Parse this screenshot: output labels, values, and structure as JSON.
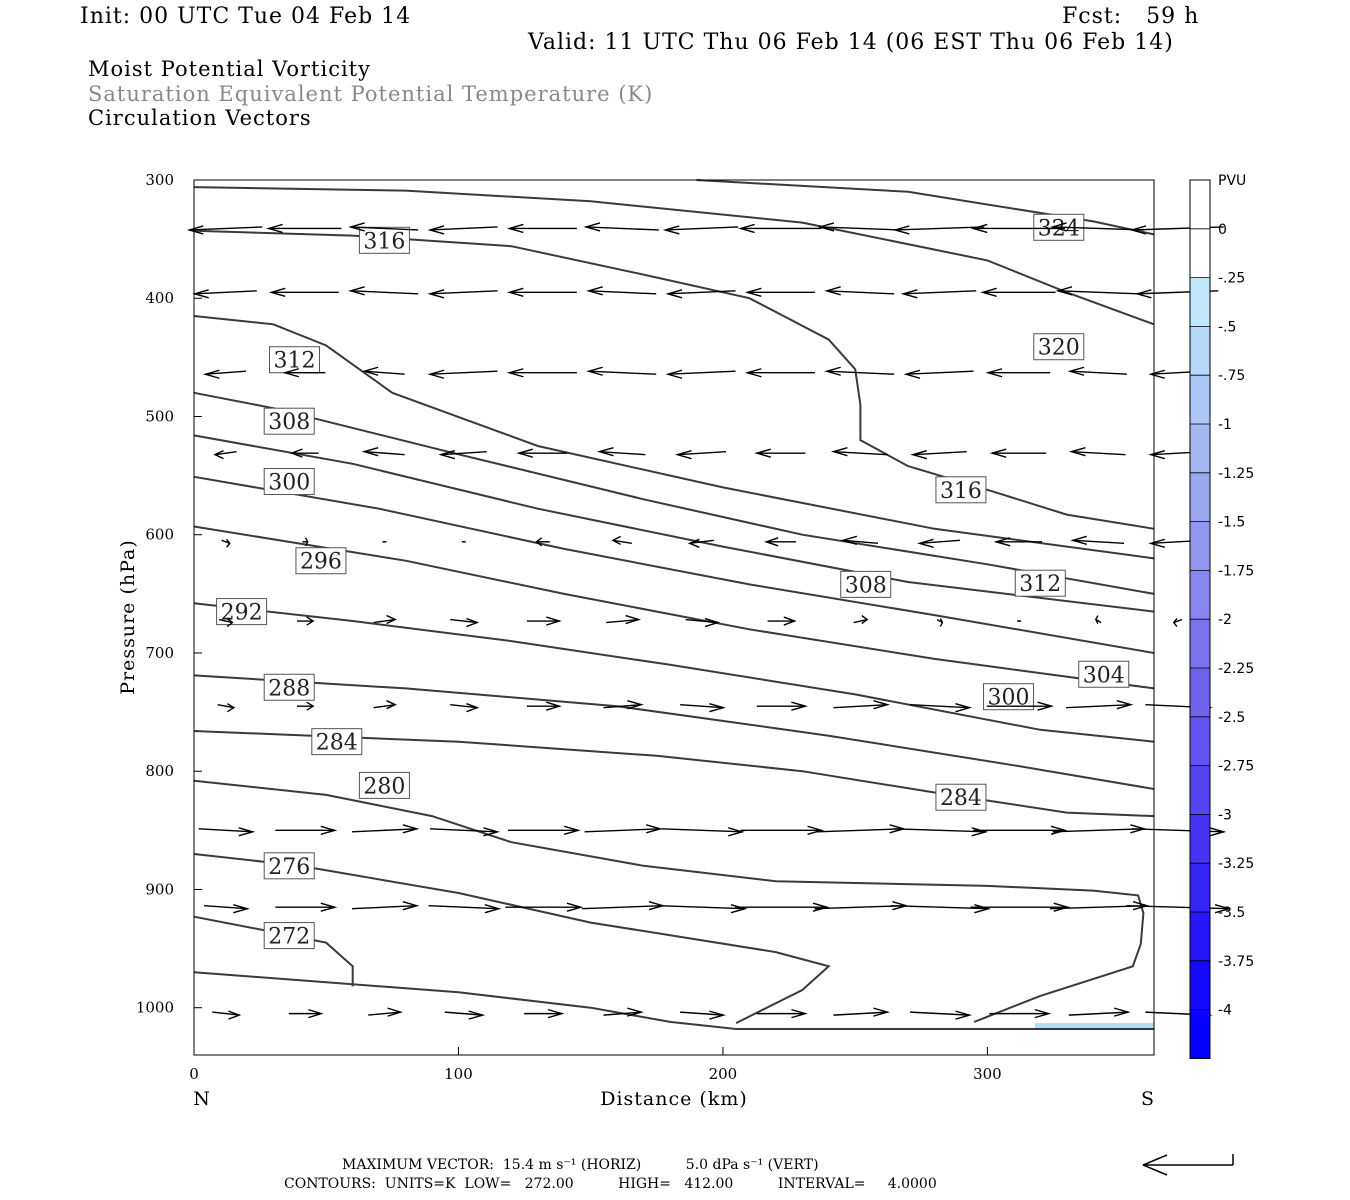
{
  "header": {
    "init": "Init: 00 UTC Tue 04 Feb 14",
    "fcst": "Fcst:   59 h",
    "valid": "Valid: 11 UTC Thu 06 Feb 14 (06 EST Thu 06 Feb 14)",
    "field1": "Moist Potential Vorticity",
    "field2": "Saturation Equivalent Potential Temperature (K)",
    "field3": "Circulation Vectors"
  },
  "footer": {
    "max_vector": "MAXIMUM VECTOR:  15.4 m s⁻¹ (HORIZ)          5.0 dPa s⁻¹ (VERT)",
    "contours": "CONTOURS:  UNITS=K  LOW=   272.00          HIGH=   412.00          INTERVAL=     4.0000"
  },
  "colors": {
    "contour": "#3a3a3a",
    "vector": "#000000",
    "pv_fill": "#b3dcf5"
  },
  "chart_data": {
    "type": "cross-section",
    "xlabel": "Distance (km)",
    "ylabel": "Pressure (hPa)",
    "xlim": [
      0,
      363
    ],
    "ylim": [
      1040,
      300
    ],
    "x_ticks": [
      0,
      100,
      200,
      300
    ],
    "y_ticks": [
      300,
      400,
      500,
      600,
      700,
      800,
      900,
      1000
    ],
    "x_end_labels": {
      "left": "N",
      "right": "S"
    },
    "grid": false,
    "colorbar": {
      "title": "PVU",
      "labels": [
        "0",
        "-.25",
        "-.5",
        "-.75",
        "-1",
        "-1.25",
        "-1.5",
        "-1.75",
        "-2",
        "-2.25",
        "-2.5",
        "-2.75",
        "-3",
        "-3.25",
        "-3.5",
        "-3.75",
        "-4"
      ],
      "colors": [
        "#ffffff",
        "#ffffff",
        "#bfe6fb",
        "#b4d8f7",
        "#abc8f5",
        "#a4b8f2",
        "#9aa8f0",
        "#9296ef",
        "#8785ee",
        "#7c74ee",
        "#7064ef",
        "#6253f0",
        "#5444f2",
        "#4534f4",
        "#3626f6",
        "#2617f9",
        "#1509fc",
        "#0500ff"
      ]
    },
    "contours": [
      {
        "value": 272,
        "points": [
          [
            0,
            923
          ],
          [
            30,
            936
          ],
          [
            50,
            945
          ],
          [
            60,
            965
          ],
          [
            60,
            982
          ]
        ],
        "label_at": [
          36,
          939
        ]
      },
      {
        "value": 276,
        "points": [
          [
            0,
            870
          ],
          [
            40,
            880
          ],
          [
            100,
            903
          ],
          [
            150,
            928
          ],
          [
            220,
            953
          ],
          [
            240,
            965
          ],
          [
            230,
            985
          ],
          [
            205,
            1013
          ]
        ],
        "label_at": [
          36,
          880
        ]
      },
      {
        "value": 280,
        "points": [
          [
            0,
            808
          ],
          [
            50,
            820
          ],
          [
            90,
            838
          ],
          [
            120,
            860
          ],
          [
            170,
            880
          ],
          [
            220,
            893
          ],
          [
            300,
            897
          ],
          [
            340,
            901
          ],
          [
            357,
            905
          ],
          [
            359,
            920
          ],
          [
            358,
            946
          ],
          [
            355,
            965
          ],
          [
            320,
            990
          ],
          [
            295,
            1012
          ]
        ],
        "label_at": [
          72,
          812
        ]
      },
      {
        "value": 280,
        "points": [
          [
            0,
            970
          ],
          [
            100,
            987
          ],
          [
            150,
            1000
          ],
          [
            180,
            1012
          ],
          [
            205,
            1018
          ],
          [
            363,
            1018
          ]
        ],
        "label_at": null
      },
      {
        "value": 284,
        "points": [
          [
            0,
            766
          ],
          [
            100,
            775
          ],
          [
            175,
            787
          ],
          [
            230,
            800
          ],
          [
            280,
            818
          ],
          [
            330,
            835
          ],
          [
            363,
            838
          ]
        ],
        "label_at": [
          54,
          775
        ],
        "label2_at": [
          290,
          822
        ]
      },
      {
        "value": 288,
        "points": [
          [
            0,
            719
          ],
          [
            80,
            730
          ],
          [
            160,
            745
          ],
          [
            240,
            770
          ],
          [
            310,
            795
          ],
          [
            363,
            815
          ]
        ],
        "label_at": [
          36,
          729
        ]
      },
      {
        "value": 292,
        "points": [
          [
            0,
            658
          ],
          [
            60,
            673
          ],
          [
            120,
            690
          ],
          [
            180,
            710
          ],
          [
            250,
            735
          ],
          [
            320,
            765
          ],
          [
            363,
            775
          ]
        ],
        "label_at": [
          18,
          665
        ]
      },
      {
        "value": 296,
        "points": [
          [
            0,
            593
          ],
          [
            80,
            622
          ],
          [
            140,
            650
          ],
          [
            210,
            680
          ],
          [
            280,
            705
          ],
          [
            363,
            730
          ]
        ],
        "label_at": [
          48,
          622
        ]
      },
      {
        "value": 300,
        "points": [
          [
            0,
            551
          ],
          [
            70,
            578
          ],
          [
            140,
            612
          ],
          [
            210,
            642
          ],
          [
            280,
            668
          ],
          [
            363,
            700
          ]
        ],
        "label_at": [
          36,
          555
        ],
        "label2_at": [
          308,
          737
        ]
      },
      {
        "value": 304,
        "points": [
          [
            0,
            516
          ],
          [
            60,
            540
          ],
          [
            130,
            578
          ],
          [
            200,
            610
          ],
          [
            270,
            640
          ],
          [
            363,
            665
          ]
        ],
        "label_at": [
          344,
          718
        ]
      },
      {
        "value": 308,
        "points": [
          [
            0,
            480
          ],
          [
            30,
            493
          ],
          [
            100,
            532
          ],
          [
            170,
            570
          ],
          [
            230,
            600
          ],
          [
            300,
            625
          ],
          [
            363,
            650
          ]
        ],
        "label_at": [
          36,
          504
        ],
        "label2_at": [
          254,
          642
        ]
      },
      {
        "value": 312,
        "points": [
          [
            0,
            415
          ],
          [
            30,
            422
          ],
          [
            50,
            440
          ],
          [
            75,
            480
          ],
          [
            130,
            525
          ],
          [
            200,
            560
          ],
          [
            280,
            595
          ],
          [
            363,
            620
          ]
        ],
        "label_at": [
          38,
          452
        ],
        "label2_at": [
          320,
          641
        ]
      },
      {
        "value": 316,
        "points": [
          [
            0,
            343
          ],
          [
            60,
            347
          ],
          [
            120,
            356
          ],
          [
            170,
            380
          ],
          [
            210,
            400
          ],
          [
            240,
            435
          ],
          [
            250,
            460
          ],
          [
            252,
            490
          ],
          [
            252,
            520
          ],
          [
            270,
            542
          ],
          [
            300,
            562
          ],
          [
            330,
            583
          ],
          [
            363,
            595
          ]
        ],
        "label_at": [
          72,
          351
        ],
        "label2_at": [
          290,
          562
        ]
      },
      {
        "value": 320,
        "points": [
          [
            0,
            306
          ],
          [
            80,
            309
          ],
          [
            150,
            318
          ],
          [
            230,
            336
          ],
          [
            300,
            368
          ],
          [
            330,
            395
          ],
          [
            363,
            422
          ]
        ],
        "label_at": [
          327,
          441
        ]
      },
      {
        "value": 324,
        "points": [
          [
            190,
            300
          ],
          [
            270,
            310
          ],
          [
            340,
            335
          ],
          [
            363,
            346
          ]
        ],
        "label_at": [
          327,
          340
        ]
      }
    ],
    "vector_rows": [
      {
        "p": 341,
        "u": [
          -27,
          -27,
          -25,
          -25,
          -25,
          -27,
          -27,
          -30,
          -30,
          -33,
          -34,
          -34,
          -34
        ]
      },
      {
        "p": 395,
        "u": [
          -23,
          -25,
          -25,
          -25,
          -25,
          -25,
          -25,
          -25,
          -25,
          -27,
          -27,
          -30,
          -30
        ]
      },
      {
        "p": 463,
        "u": [
          -15,
          -15,
          -15,
          -25,
          -25,
          -25,
          -25,
          -25,
          -25,
          -25,
          -23,
          -21,
          -20
        ]
      },
      {
        "p": 531,
        "u": [
          -8,
          -10,
          -15,
          -17,
          -18,
          -17,
          -18,
          -18,
          -20,
          -20,
          -20,
          -20,
          -20
        ]
      },
      {
        "p": 606,
        "u": [
          3,
          2,
          1,
          -1,
          -5,
          -7,
          -9,
          -11,
          -13,
          -15,
          -17,
          -19,
          -20
        ]
      },
      {
        "p": 673,
        "u": [
          5,
          6,
          8,
          10,
          12,
          12,
          12,
          10,
          5,
          2,
          1,
          -2,
          -3
        ]
      },
      {
        "p": 745,
        "u": [
          6,
          6,
          8,
          10,
          12,
          14,
          16,
          18,
          20,
          22,
          24,
          24,
          24
        ]
      },
      {
        "p": 850,
        "u": [
          20,
          22,
          24,
          25,
          26,
          28,
          30,
          30,
          32,
          34,
          34,
          34,
          34
        ]
      },
      {
        "p": 915,
        "u": [
          16,
          22,
          24,
          26,
          28,
          30,
          32,
          34,
          34,
          36,
          36,
          36,
          38
        ]
      },
      {
        "p": 1005,
        "u": [
          10,
          12,
          12,
          14,
          14,
          14,
          16,
          18,
          20,
          22,
          22,
          22,
          24
        ]
      }
    ],
    "pv_shading": [
      [
        318,
        1013
      ],
      [
        363,
        1018
      ]
    ],
    "reference_vector": {
      "horiz": "15.4 m s⁻¹",
      "vert": "5.0 dPa s⁻¹"
    }
  }
}
